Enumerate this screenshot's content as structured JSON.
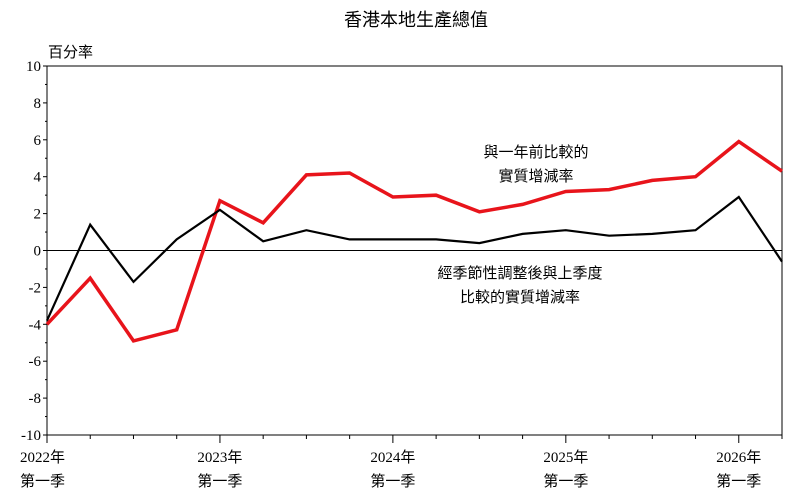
{
  "chart_data": {
    "type": "line",
    "title": "香港本地生產總值",
    "ylabel": "百分率",
    "xlabel": "",
    "ylim": [
      -10,
      10
    ],
    "y_ticks": [
      "10",
      "8",
      "6",
      "4",
      "2",
      "0",
      "-2",
      "-4",
      "-6",
      "-8",
      "-10"
    ],
    "x": [
      "2022Q1",
      "2022Q2",
      "2022Q3",
      "2022Q4",
      "2023Q1",
      "2023Q2",
      "2023Q3",
      "2023Q4",
      "2024Q1",
      "2024Q2",
      "2024Q3",
      "2024Q4",
      "2025Q1",
      "2025Q2",
      "2025Q3",
      "2025Q4",
      "2026Q1",
      "2026Q2"
    ],
    "x_tick_labels": [
      {
        "year": "2022年",
        "quarter": "第一季"
      },
      {
        "year": "2023年",
        "quarter": "第一季"
      },
      {
        "year": "2024年",
        "quarter": "第一季"
      },
      {
        "year": "2025年",
        "quarter": "第一季"
      },
      {
        "year": "2026年",
        "quarter": "第一季"
      }
    ],
    "grid": false,
    "series": [
      {
        "color": "#e8141b",
        "annotation": [
          "與一年前比較的",
          "實質增減率"
        ],
        "values": [
          -4.0,
          -1.5,
          -4.9,
          -4.3,
          2.7,
          1.5,
          4.1,
          4.2,
          2.9,
          3.0,
          2.1,
          2.5,
          3.2,
          3.3,
          3.8,
          4.0,
          5.9,
          4.3
        ]
      },
      {
        "color": "#000000",
        "annotation": [
          "經季節性調整後與上季度",
          "比較的實質增減率"
        ],
        "values": [
          -3.8,
          1.4,
          -1.7,
          0.6,
          2.2,
          0.5,
          1.1,
          0.6,
          0.6,
          0.6,
          0.4,
          0.9,
          1.1,
          0.8,
          0.9,
          1.1,
          2.9,
          -0.6
        ]
      }
    ]
  }
}
